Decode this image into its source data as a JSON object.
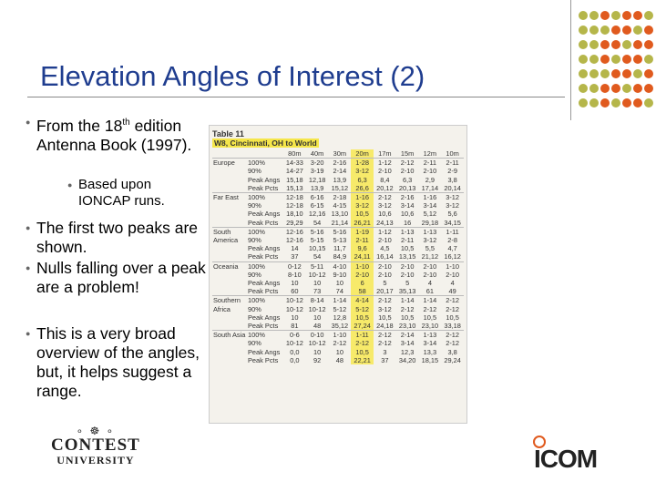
{
  "title": "Elevation Angles of Interest (2)",
  "bullets": [
    {
      "parts": [
        "From the 18",
        "th",
        " edition Antenna Book (1997)."
      ]
    },
    {
      "sub": "Based upon IONCAP runs."
    },
    {
      "text": "The first two peaks are shown."
    },
    {
      "text": "Nulls falling over a peak are a problem!"
    },
    {
      "text": "This is a very broad overview of the angles, but, it helps suggest a range."
    }
  ],
  "table": {
    "caption": "Table 11",
    "subtitle": "W8, Cincinnati, OH to World",
    "bands": [
      "80m",
      "40m",
      "30m",
      "20m",
      "17m",
      "15m",
      "12m",
      "10m"
    ],
    "groups": [
      {
        "region": "Europe",
        "rows": [
          {
            "label": "100%",
            "values": [
              "14-33",
              "3-20",
              "2-16",
              "1-28",
              "1-12",
              "2-12",
              "2-11",
              "2-11"
            ]
          },
          {
            "label": "90%",
            "values": [
              "14-27",
              "3-19",
              "2-14",
              "3-12",
              "2-10",
              "2-10",
              "2-10",
              "2-9"
            ]
          },
          {
            "label": "Peak Angs",
            "values": [
              "15,18",
              "12,18",
              "13,9",
              "6,3",
              "8,4",
              "6,3",
              "2,9",
              "3,8"
            ]
          },
          {
            "label": "Peak Pcts",
            "values": [
              "15,13",
              "13,9",
              "15,12",
              "26,6",
              "20,12",
              "20,13",
              "17,14",
              "20,14"
            ]
          }
        ]
      },
      {
        "region": "Far East",
        "rows": [
          {
            "label": "100%",
            "values": [
              "12-18",
              "6-16",
              "2-18",
              "1-16",
              "2-12",
              "2-16",
              "1-16",
              "3-12"
            ]
          },
          {
            "label": "90%",
            "values": [
              "12-18",
              "6-15",
              "4-15",
              "3-12",
              "3-12",
              "3-14",
              "3-14",
              "3-12"
            ]
          },
          {
            "label": "Peak Angs",
            "values": [
              "18,10",
              "12,16",
              "13,10",
              "10,5",
              "10,6",
              "10,6",
              "5,12",
              "5,6"
            ]
          },
          {
            "label": "Peak Pcts",
            "values": [
              "29,29",
              "54",
              "21,14",
              "26,21",
              "24,13",
              "16",
              "29,18",
              "34,15"
            ]
          }
        ]
      },
      {
        "region": "South America",
        "rows": [
          {
            "label": "100%",
            "values": [
              "12-16",
              "5-16",
              "5-16",
              "1-19",
              "1-12",
              "1-13",
              "1-13",
              "1-11"
            ]
          },
          {
            "label": "90%",
            "values": [
              "12-16",
              "5-15",
              "5-13",
              "2-11",
              "2-10",
              "2-11",
              "3-12",
              "2-8"
            ]
          },
          {
            "label": "Peak Angs",
            "values": [
              "14",
              "10,15",
              "11,7",
              "9,6",
              "4,5",
              "10,5",
              "5,5",
              "4,7"
            ]
          },
          {
            "label": "Peak Pcts",
            "values": [
              "37",
              "54",
              "84,9",
              "24,11",
              "16,14",
              "13,15",
              "21,12",
              "16,12"
            ]
          }
        ]
      },
      {
        "region": "Oceania",
        "rows": [
          {
            "label": "100%",
            "values": [
              "0-12",
              "5-11",
              "4-10",
              "1-10",
              "2-10",
              "2-10",
              "2-10",
              "1-10"
            ]
          },
          {
            "label": "90%",
            "values": [
              "8-10",
              "10-12",
              "9-10",
              "2-10",
              "2-10",
              "2-10",
              "2-10",
              "2-10"
            ]
          },
          {
            "label": "Peak Angs",
            "values": [
              "10",
              "10",
              "10",
              "6",
              "5",
              "5",
              "4",
              "4"
            ]
          },
          {
            "label": "Peak Pcts",
            "values": [
              "60",
              "73",
              "74",
              "58",
              "20,17",
              "35,13",
              "61",
              "49"
            ]
          }
        ]
      },
      {
        "region": "Southern Africa",
        "rows": [
          {
            "label": "100%",
            "values": [
              "10-12",
              "8-14",
              "1-14",
              "4-14",
              "2-12",
              "1-14",
              "1-14",
              "2-12"
            ]
          },
          {
            "label": "90%",
            "values": [
              "10-12",
              "10-12",
              "5-12",
              "5-12",
              "3-12",
              "2-12",
              "2-12",
              "2-12"
            ]
          },
          {
            "label": "Peak Angs",
            "values": [
              "10",
              "10",
              "12,8",
              "10,5",
              "10,5",
              "10,5",
              "10,5",
              "10,5"
            ]
          },
          {
            "label": "Peak Pcts",
            "values": [
              "81",
              "48",
              "35,12",
              "27,24",
              "24,18",
              "23,10",
              "23,10",
              "33,18"
            ]
          }
        ]
      },
      {
        "region": "South Asia",
        "rows": [
          {
            "label": "100%",
            "values": [
              "0-6",
              "0-10",
              "1-10",
              "1-11",
              "2-12",
              "2-14",
              "1-13",
              "2-12"
            ]
          },
          {
            "label": "90%",
            "values": [
              "10-12",
              "10-12",
              "2-12",
              "2-12",
              "2-12",
              "3-14",
              "3-14",
              "2-12"
            ]
          },
          {
            "label": "Peak Angs",
            "values": [
              "0,0",
              "10",
              "10",
              "10,5",
              "3",
              "12,3",
              "13,3",
              "3,8"
            ]
          },
          {
            "label": "Peak Pcts",
            "values": [
              "0,0",
              "92",
              "48",
              "22,21",
              "37",
              "34,20",
              "18,15",
              "29,24"
            ]
          }
        ]
      }
    ]
  },
  "logos": {
    "contest_deco": "∘ ☸ ∘",
    "contest": "CONTEST",
    "university": "UNIVERSITY",
    "icom": "ICOM"
  }
}
